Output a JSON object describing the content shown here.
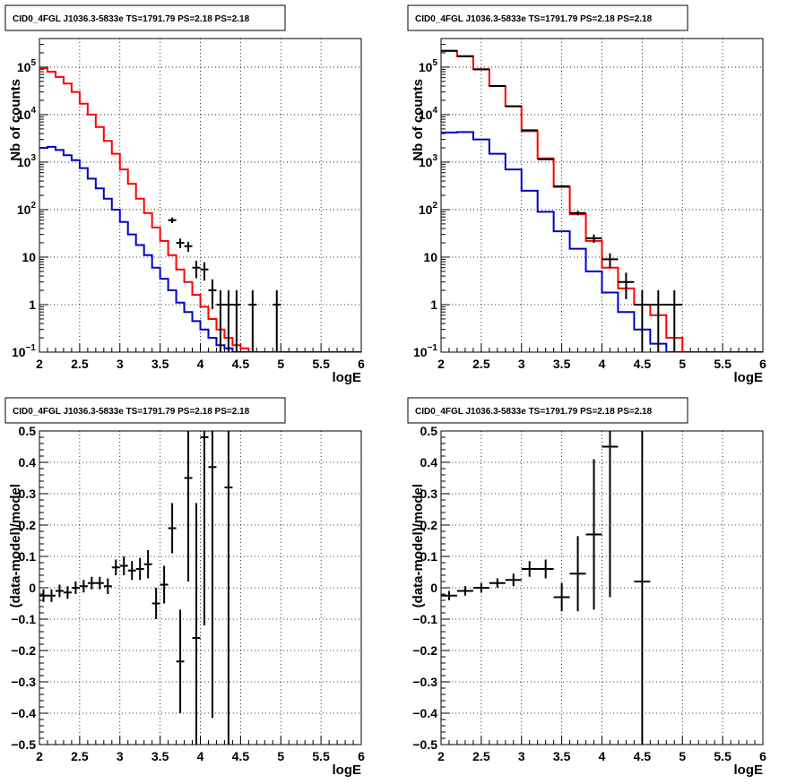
{
  "chart_data": [
    {
      "type": "line",
      "title": "CID0_4FGL J1036.3-5833e TS=1791.79 PS=2.18 PS=2.18",
      "xlabel": "logE",
      "ylabel": "Nb of counts",
      "xlim": [
        2,
        6
      ],
      "ylim": [
        0.1,
        400000
      ],
      "yscale": "log",
      "grid": true,
      "x_ticks": [
        "2",
        "2.5",
        "3",
        "3.5",
        "4",
        "4.5",
        "5",
        "5.5",
        "6"
      ],
      "y_ticks": [
        {
          "value": 0.1,
          "base": "10",
          "exp": "−1"
        },
        {
          "value": 1,
          "label": "1"
        },
        {
          "value": 10,
          "label": "10"
        },
        {
          "value": 100,
          "base": "10",
          "exp": "2"
        },
        {
          "value": 1000,
          "base": "10",
          "exp": "3"
        },
        {
          "value": 10000,
          "base": "10",
          "exp": "4"
        },
        {
          "value": 100000,
          "base": "10",
          "exp": "5"
        }
      ],
      "series": [
        {
          "color": "#ff0000",
          "style": "step",
          "bin_width": 0.1,
          "x": [
            2.05,
            2.15,
            2.25,
            2.35,
            2.45,
            2.55,
            2.65,
            2.75,
            2.85,
            2.95,
            3.05,
            3.15,
            3.25,
            3.35,
            3.45,
            3.55,
            3.65,
            3.75,
            3.85,
            3.95,
            4.05,
            4.15,
            4.25,
            4.35,
            4.45,
            4.55,
            4.65,
            4.75,
            4.85,
            4.95,
            5.05
          ],
          "y": [
            95000,
            80000,
            62000,
            45000,
            30000,
            17000,
            10000,
            5500,
            2800,
            1500,
            700,
            350,
            170,
            85,
            42,
            22,
            11,
            5.5,
            3,
            1.6,
            0.9,
            0.5,
            0.3,
            0.2,
            0.14,
            0.12,
            0.1,
            0.1,
            0.1,
            0.1,
            0.1
          ]
        },
        {
          "color": "#0000cc",
          "style": "step",
          "bin_width": 0.1,
          "x": [
            2.05,
            2.15,
            2.25,
            2.35,
            2.45,
            2.55,
            2.65,
            2.75,
            2.85,
            2.95,
            3.05,
            3.15,
            3.25,
            3.35,
            3.45,
            3.55,
            3.65,
            3.75,
            3.85,
            3.95,
            4.05,
            4.15,
            4.25,
            4.35,
            4.45,
            4.55,
            4.65,
            4.75,
            4.85,
            4.95,
            5.05,
            5.15,
            5.25,
            5.35,
            5.45,
            5.55,
            5.65,
            5.75,
            5.85,
            5.95
          ],
          "y": [
            2000,
            2100,
            1800,
            1400,
            1100,
            750,
            450,
            280,
            170,
            100,
            55,
            30,
            18,
            11,
            6,
            3.5,
            2,
            1.1,
            0.7,
            0.45,
            0.3,
            0.2,
            0.14,
            0.12,
            0.1,
            0.1,
            0.1,
            0.1,
            0.1,
            0.1,
            0.1,
            0.1,
            0.1,
            0.1,
            0.1,
            0.1,
            0.1,
            0.1,
            0.1,
            0.1
          ]
        },
        {
          "color": "#000000",
          "style": "errorbar",
          "x": [
            3.65,
            3.75,
            3.85,
            3.95,
            4.05,
            4.15,
            4.25,
            4.35,
            4.45,
            4.65,
            4.95
          ],
          "y": [
            60,
            20,
            17,
            6,
            5.5,
            2,
            1,
            1,
            1,
            1,
            1
          ],
          "xerr": 0.05,
          "yerr_lo": [
            8,
            4.5,
            4,
            2.4,
            2.3,
            1.2,
            0.9,
            0.9,
            0.9,
            0.9,
            0.9
          ],
          "yerr_hi": [
            8,
            4.5,
            4,
            2.4,
            2.3,
            1.4,
            1,
            1,
            1,
            1,
            1
          ]
        }
      ]
    },
    {
      "type": "line",
      "title": "CID0_4FGL J1036.3-5833e TS=1791.79 PS=2.18 PS=2.18",
      "xlabel": "logE",
      "ylabel": "Nb of counts",
      "xlim": [
        2,
        6
      ],
      "ylim": [
        0.1,
        400000
      ],
      "yscale": "log",
      "grid": true,
      "x_ticks": [
        "2",
        "2.5",
        "3",
        "3.5",
        "4",
        "4.5",
        "5",
        "5.5",
        "6"
      ],
      "y_ticks": [
        {
          "value": 0.1,
          "base": "10",
          "exp": "−1"
        },
        {
          "value": 1,
          "label": "1"
        },
        {
          "value": 10,
          "label": "10"
        },
        {
          "value": 100,
          "base": "10",
          "exp": "2"
        },
        {
          "value": 1000,
          "base": "10",
          "exp": "3"
        },
        {
          "value": 10000,
          "base": "10",
          "exp": "4"
        },
        {
          "value": 100000,
          "base": "10",
          "exp": "5"
        }
      ],
      "series": [
        {
          "color": "#ff0000",
          "style": "step",
          "bin_width": 0.2,
          "x": [
            2.1,
            2.3,
            2.5,
            2.7,
            2.9,
            3.1,
            3.3,
            3.5,
            3.7,
            3.9,
            4.1,
            4.3,
            4.5,
            4.7,
            4.9,
            5.1
          ],
          "y": [
            220000,
            170000,
            90000,
            40000,
            15000,
            4500,
            1200,
            300,
            80,
            22,
            6,
            2.2,
            1,
            0.6,
            0.2,
            0.1
          ]
        },
        {
          "color": "#0000cc",
          "style": "step",
          "bin_width": 0.2,
          "x": [
            2.1,
            2.3,
            2.5,
            2.7,
            2.9,
            3.1,
            3.3,
            3.5,
            3.7,
            3.9,
            4.1,
            4.3,
            4.5,
            4.7,
            4.9,
            5.1,
            5.3,
            5.5,
            5.7,
            5.9
          ],
          "y": [
            4200,
            4300,
            3000,
            1500,
            700,
            250,
            90,
            35,
            15,
            5,
            1.8,
            0.7,
            0.3,
            0.15,
            0.1,
            0.1,
            0.1,
            0.1,
            0.1,
            0.1
          ]
        },
        {
          "color": "#000000",
          "style": "errorbar",
          "x": [
            2.1,
            2.3,
            2.5,
            2.7,
            2.9,
            3.1,
            3.3,
            3.5,
            3.7,
            3.9,
            4.1,
            4.3,
            4.5,
            4.7,
            4.9
          ],
          "y": [
            220000,
            170000,
            90000,
            40000,
            15000,
            4700,
            1150,
            310,
            85,
            25,
            9,
            3,
            1,
            1,
            1
          ],
          "xerr": 0.1,
          "yerr_lo": [
            450,
            400,
            300,
            200,
            120,
            70,
            34,
            18,
            9,
            5,
            3,
            1.7,
            0.9,
            0.9,
            0.9
          ],
          "yerr_hi": [
            450,
            400,
            300,
            200,
            120,
            70,
            34,
            18,
            9,
            5,
            3,
            1.7,
            1,
            1,
            1
          ]
        }
      ]
    },
    {
      "type": "scatter",
      "title": "CID0_4FGL J1036.3-5833e TS=1791.79 PS=2.18 PS=2.18",
      "xlabel": "logE",
      "ylabel": "(data-model)/model",
      "xlim": [
        2,
        6
      ],
      "ylim": [
        -0.5,
        0.5
      ],
      "grid": true,
      "x_ticks": [
        "2",
        "2.5",
        "3",
        "3.5",
        "4",
        "4.5",
        "5",
        "5.5",
        "6"
      ],
      "y_ticks": [
        "−0.5",
        "−0.4",
        "−0.3",
        "−0.2",
        "−0.1",
        "0",
        "0.1",
        "0.2",
        "0.3",
        "0.4",
        "0.5"
      ],
      "series": [
        {
          "color": "#000000",
          "style": "errorbar",
          "x": [
            2.05,
            2.15,
            2.25,
            2.35,
            2.45,
            2.55,
            2.65,
            2.75,
            2.85,
            2.95,
            3.05,
            3.15,
            3.25,
            3.35,
            3.45,
            3.55,
            3.65,
            3.75,
            3.85,
            3.95,
            4.05,
            4.15,
            4.35
          ],
          "y": [
            -0.025,
            -0.025,
            -0.01,
            -0.015,
            0,
            0.005,
            0.015,
            0.015,
            0.005,
            0.065,
            0.07,
            0.055,
            0.06,
            0.075,
            -0.05,
            0.01,
            0.19,
            -0.235,
            0.35,
            -0.16,
            0.48,
            0.385,
            0.32
          ],
          "xerr": 0.05,
          "yerr": [
            0.02,
            0.02,
            0.02,
            0.02,
            0.02,
            0.02,
            0.02,
            0.02,
            0.025,
            0.025,
            0.03,
            0.03,
            0.035,
            0.045,
            0.05,
            0.06,
            0.08,
            0.165,
            0.33,
            0.43,
            0.6,
            0.8,
            0.9
          ]
        }
      ]
    },
    {
      "type": "scatter",
      "title": "CID0_4FGL J1036.3-5833e TS=1791.79 PS=2.18 PS=2.18",
      "xlabel": "logE",
      "ylabel": "(data-model)/model",
      "xlim": [
        2,
        6
      ],
      "ylim": [
        -0.5,
        0.5
      ],
      "grid": true,
      "x_ticks": [
        "2",
        "2.5",
        "3",
        "3.5",
        "4",
        "4.5",
        "5",
        "5.5",
        "6"
      ],
      "y_ticks": [
        "−0.5",
        "−0.4",
        "−0.3",
        "−0.2",
        "−0.1",
        "0",
        "0.1",
        "0.2",
        "0.3",
        "0.4",
        "0.5"
      ],
      "series": [
        {
          "color": "#000000",
          "style": "errorbar",
          "x": [
            2.1,
            2.3,
            2.5,
            2.7,
            2.9,
            3.1,
            3.3,
            3.5,
            3.7,
            3.9,
            4.1,
            4.5
          ],
          "y": [
            -0.025,
            -0.01,
            0,
            0.015,
            0.025,
            0.06,
            0.06,
            -0.03,
            0.045,
            0.17,
            0.45,
            0.02
          ],
          "xerr": 0.1,
          "yerr": [
            0.015,
            0.015,
            0.015,
            0.015,
            0.02,
            0.025,
            0.03,
            0.045,
            0.12,
            0.24,
            0.48,
            0.9
          ]
        }
      ]
    }
  ]
}
